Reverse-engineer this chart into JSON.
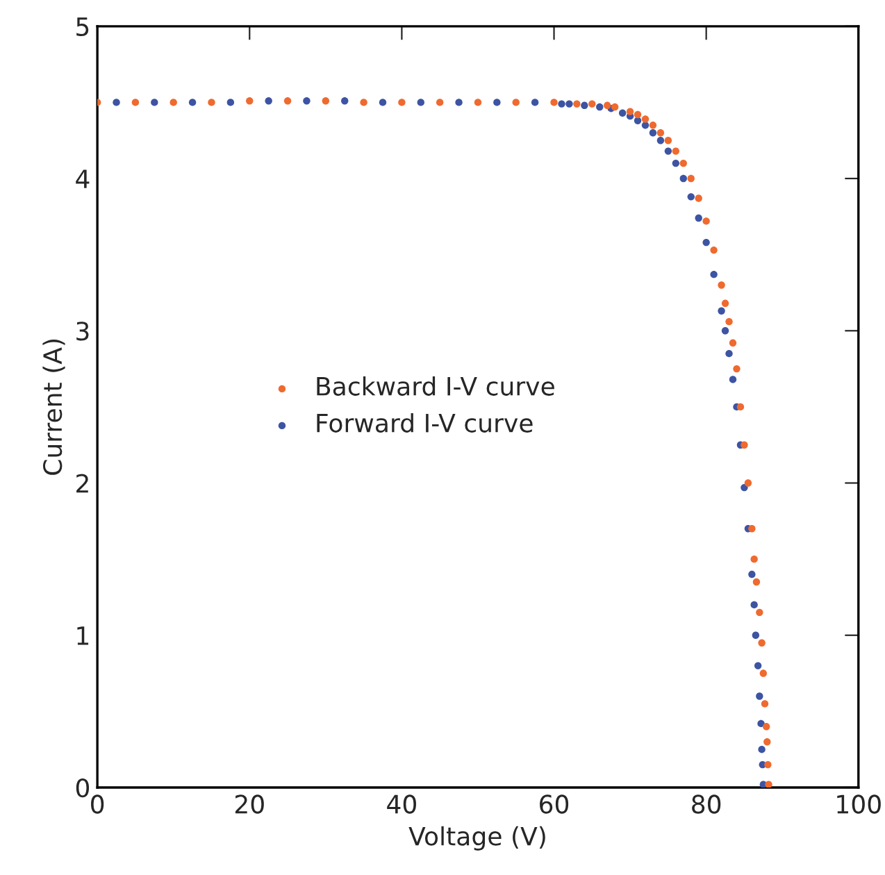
{
  "chart_data": {
    "type": "scatter",
    "xlabel": "Voltage (V)",
    "ylabel": "Current (A)",
    "xlim": [
      0,
      100
    ],
    "xticks": [
      0,
      20,
      40,
      60,
      80,
      100
    ],
    "ylim": [
      0,
      5
    ],
    "yticks": [
      0,
      1,
      2,
      3,
      4,
      5
    ],
    "grid": false,
    "legend": "left",
    "marker": "circle",
    "series": [
      {
        "name": "Backward I-V curve",
        "color": "#ef6a2f",
        "x": [
          0,
          5,
          10,
          15,
          20,
          25,
          30,
          35,
          40,
          45,
          50,
          55,
          60,
          63,
          65,
          67,
          68,
          70,
          71,
          72,
          73,
          74,
          75,
          76,
          77,
          78,
          79,
          80,
          81,
          82,
          82.5,
          83,
          83.5,
          84,
          84.5,
          85,
          85.5,
          86,
          86.3,
          86.6,
          87,
          87.3,
          87.5,
          87.7,
          87.9,
          88,
          88.1,
          88.2
        ],
        "values": [
          4.5,
          4.5,
          4.5,
          4.5,
          4.51,
          4.51,
          4.51,
          4.5,
          4.5,
          4.5,
          4.5,
          4.5,
          4.5,
          4.49,
          4.49,
          4.48,
          4.47,
          4.44,
          4.42,
          4.39,
          4.35,
          4.3,
          4.25,
          4.18,
          4.1,
          4.0,
          3.87,
          3.72,
          3.53,
          3.3,
          3.18,
          3.06,
          2.92,
          2.75,
          2.5,
          2.25,
          2.0,
          1.7,
          1.5,
          1.35,
          1.15,
          0.95,
          0.75,
          0.55,
          0.4,
          0.3,
          0.15,
          0.02
        ]
      },
      {
        "name": "Forward I-V curve",
        "color": "#3d54a3",
        "x": [
          2.5,
          7.5,
          12.5,
          17.5,
          22.5,
          27.5,
          32.5,
          37.5,
          42.5,
          47.5,
          52.5,
          57.5,
          61,
          62,
          64,
          66,
          67.5,
          69,
          70,
          71,
          72,
          73,
          74,
          75,
          76,
          77,
          78,
          79,
          80,
          81,
          82,
          82.5,
          83,
          83.5,
          84,
          84.5,
          85,
          85.5,
          86,
          86.3,
          86.5,
          86.8,
          87,
          87.2,
          87.3,
          87.4,
          87.5
        ],
        "values": [
          4.5,
          4.5,
          4.5,
          4.5,
          4.51,
          4.51,
          4.51,
          4.5,
          4.5,
          4.5,
          4.5,
          4.5,
          4.49,
          4.49,
          4.48,
          4.47,
          4.46,
          4.43,
          4.41,
          4.38,
          4.35,
          4.3,
          4.25,
          4.18,
          4.1,
          4.0,
          3.88,
          3.74,
          3.58,
          3.37,
          3.13,
          3.0,
          2.85,
          2.68,
          2.5,
          2.25,
          1.97,
          1.7,
          1.4,
          1.2,
          1.0,
          0.8,
          0.6,
          0.42,
          0.25,
          0.15,
          0.02
        ]
      }
    ]
  }
}
